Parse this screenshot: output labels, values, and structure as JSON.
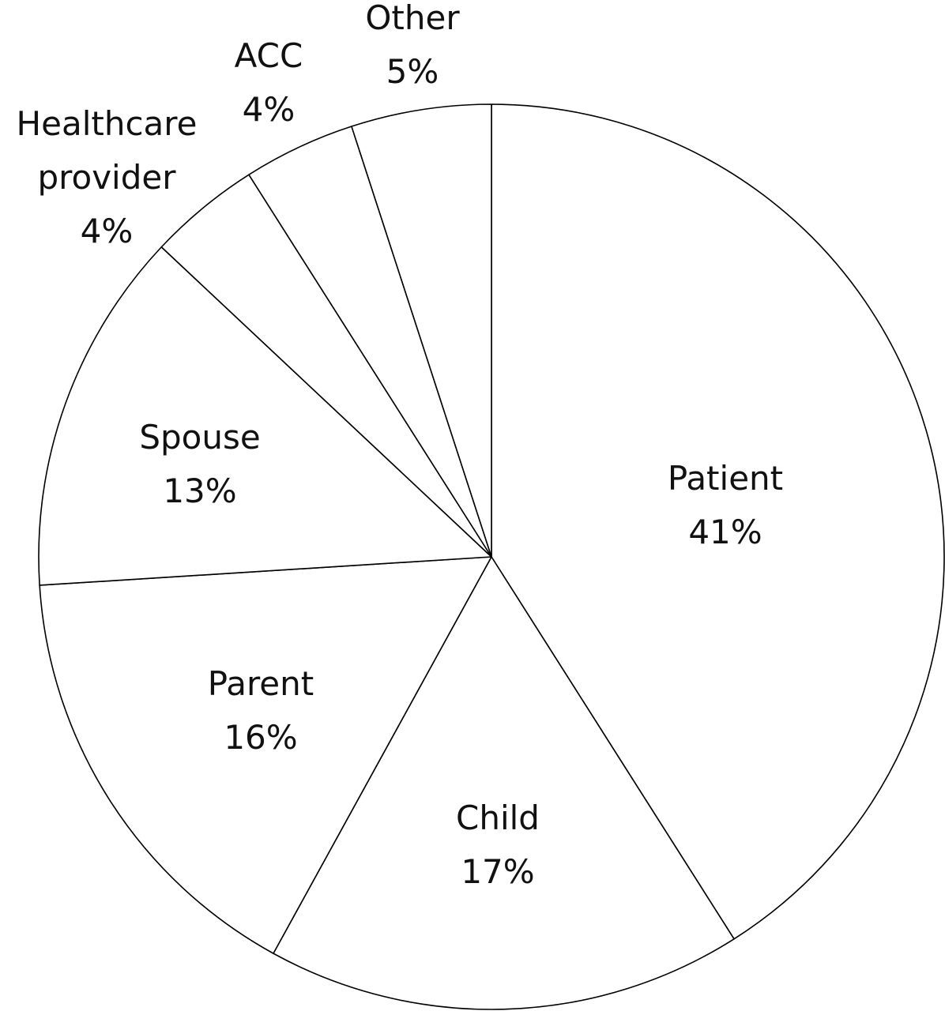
{
  "chart_data": {
    "type": "pie",
    "categories": [
      "Patient",
      "Child",
      "Parent",
      "Spouse",
      "Healthcare provider",
      "ACC",
      "Other"
    ],
    "values": [
      41,
      17,
      16,
      13,
      4,
      4,
      5
    ],
    "value_labels": [
      "41%",
      "17%",
      "16%",
      "13%",
      "4%",
      "4%",
      "5%"
    ],
    "color": "#ffffff"
  }
}
